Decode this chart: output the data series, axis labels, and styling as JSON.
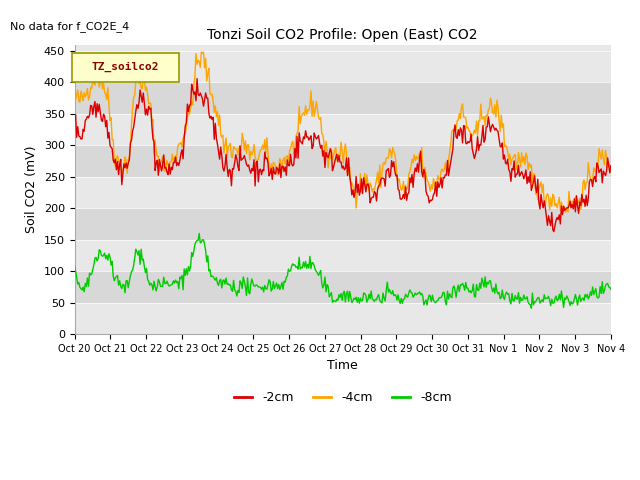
{
  "title": "Tonzi Soil CO2 Profile: Open (East) CO2",
  "subtitle": "No data for f_CO2E_4",
  "xlabel": "Time",
  "ylabel": "Soil CO2 (mV)",
  "ylim": [
    0,
    460
  ],
  "yticks": [
    0,
    50,
    100,
    150,
    200,
    250,
    300,
    350,
    400,
    450
  ],
  "legend_label": "TZ_soilco2",
  "series_labels": [
    "-2cm",
    "-4cm",
    "-8cm"
  ],
  "series_colors": [
    "#dd0000",
    "#ffa500",
    "#00cc00"
  ],
  "band_colors": [
    "#e8e8e8",
    "#d8d8d8"
  ],
  "n_points": 500,
  "x_start": 20.0,
  "x_end": 35.0,
  "xtick_positions": [
    20,
    21,
    22,
    23,
    24,
    25,
    26,
    27,
    28,
    29,
    30,
    31,
    32,
    33,
    34,
    35
  ],
  "xtick_labels": [
    "Oct 20",
    "Oct 21",
    "Oct 22",
    "Oct 23",
    "Oct 24",
    "Oct 25",
    "Oct 26",
    "Oct 27",
    "Oct 28",
    "Oct 29",
    "Oct 30",
    "Oct 31",
    "Nov 1",
    "Nov 2",
    "Nov 3",
    "Nov 4"
  ]
}
